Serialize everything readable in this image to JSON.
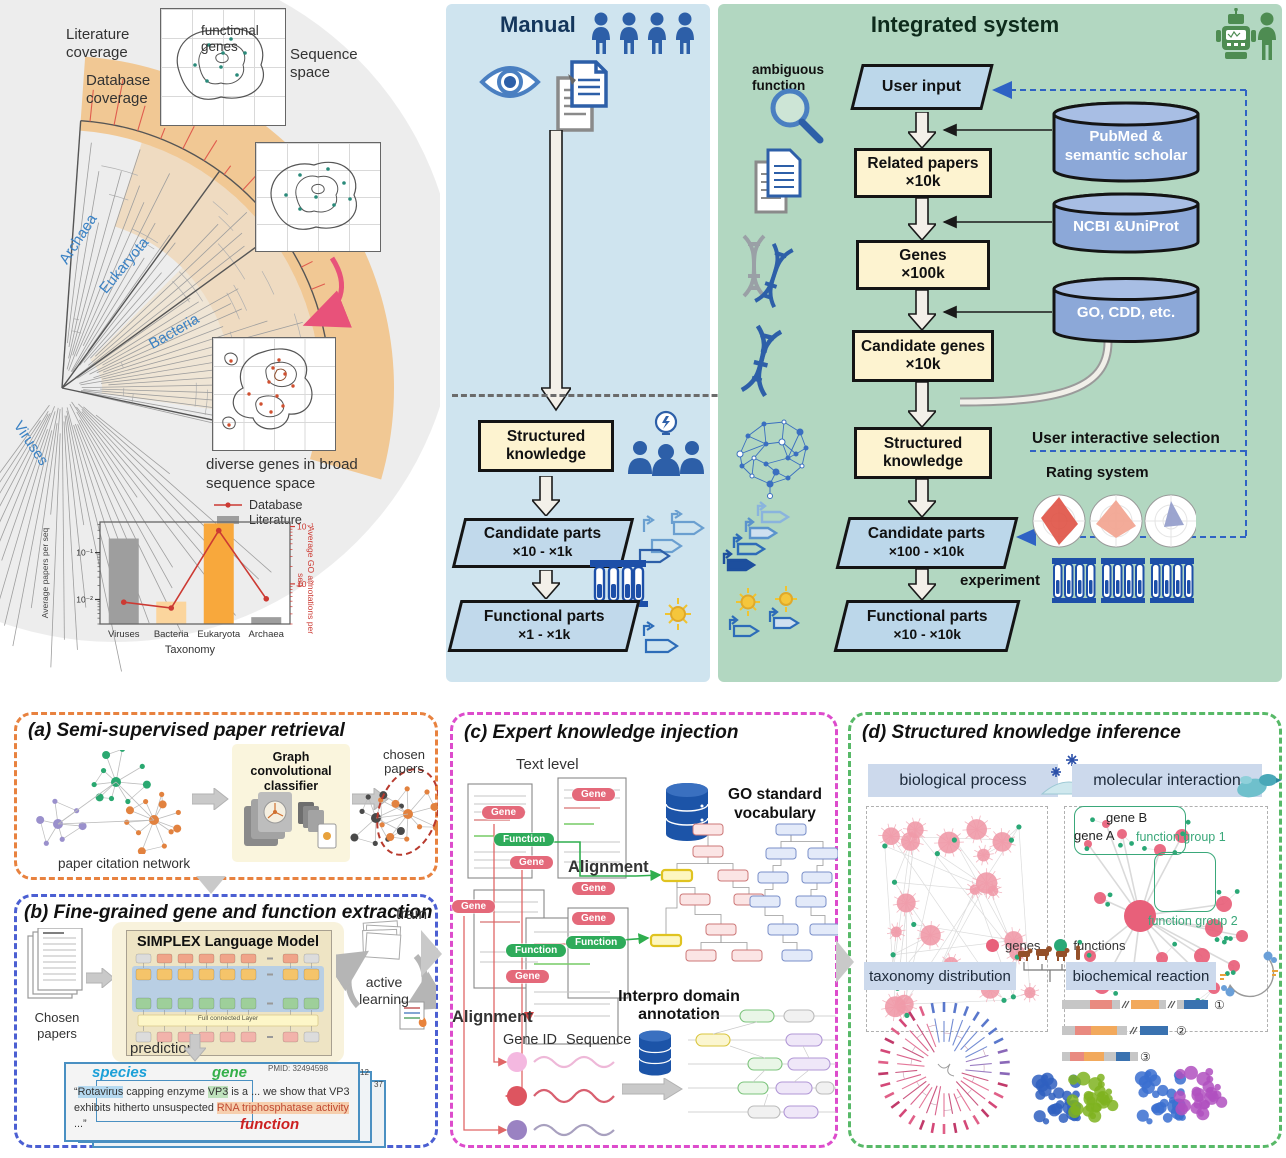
{
  "tree_figure": {
    "literature_coverage": "Literature coverage",
    "database_coverage": "Database coverage",
    "archaea": "Archaea",
    "eukaryota": "Eukaryota",
    "bacteria": "Bacteria",
    "viruses": "Viruses",
    "functional_genes": "functional genes",
    "sequence_space": "Sequence space",
    "caption": "diverse genes in broad sequence space"
  },
  "chart_data": {
    "type": "bar+line",
    "categories": [
      "Viruses",
      "Bacteria",
      "Eukaryota",
      "Archaea"
    ],
    "series": [
      {
        "name": "Literature",
        "type": "bar",
        "axis": "left",
        "values": [
          0.2,
          0.009,
          0.42,
          0.0042
        ],
        "colors": [
          "#9e9e9e",
          "#fbd59d",
          "#f8a83c",
          "#9e9e9e"
        ]
      },
      {
        "name": "Database",
        "type": "line",
        "axis": "right",
        "values": [
          0.0048,
          0.0038,
          0.085,
          0.0055
        ],
        "color": "#cc3a33"
      }
    ],
    "title": "",
    "xlabel": "Taxonomy",
    "ylabel_left": "Average papers per seq",
    "ylabel_right": "Average GO annotations per seq",
    "yscale": "log",
    "ylim_left": [
      0.003,
      0.45
    ],
    "ylim_right": [
      0.002,
      0.12
    ],
    "ytick_values": [
      0.1,
      0.01
    ],
    "yticks_left": [
      "10⁻¹",
      "10⁻²"
    ],
    "yticks_right": [
      "10⁻¹",
      "10⁻²"
    ],
    "legend_position": "top-right",
    "grid": false
  },
  "manual": {
    "title": "Manual",
    "structured_knowledge": "Structured knowledge",
    "candidate_parts": "Candidate parts",
    "candidate_count": "×10 - ×1k",
    "functional_parts": "Functional parts",
    "functional_count": "×1 - ×1k"
  },
  "integrated": {
    "title": "Integrated system",
    "ambiguous_function": "ambiguous function",
    "user_input": "User input",
    "db_pubmed": "PubMed & semantic scholar",
    "related_papers": "Related papers",
    "related_count": "×10k",
    "db_ncbi": "NCBI &UniProt",
    "genes": "Genes",
    "genes_count": "×100k",
    "db_go": "GO, CDD, etc.",
    "candidate_genes": "Candidate genes",
    "candidate_genes_count": "×10k",
    "structured_knowledge": "Structured knowledge",
    "user_interactive_selection": "User interactive selection",
    "rating_system": "Rating system",
    "candidate_parts": "Candidate parts",
    "candidate_parts_count": "×100 - ×10k",
    "experiment": "experiment",
    "functional_parts": "Functional parts",
    "functional_parts_count": "×10 - ×10k"
  },
  "panel_a": {
    "title": "(a) Semi-supervised paper retrieval",
    "classifier": "Graph convolutional classifier",
    "network_label": "paper citation network",
    "chosen_label": "chosen papers"
  },
  "panel_b": {
    "title": "(b) Fine-grained gene and function extraction",
    "chosen_papers": "Chosen papers",
    "model_title": "SIMPLEX Language Model",
    "fc_layer": "Full connected Layer",
    "train": "train",
    "active_learning": "active learning",
    "prediction": "prediction",
    "pmid": "PMID: 32494598",
    "card_edge_1": "12",
    "card_edge_2": "37",
    "species_label": "species",
    "gene_label": "gene",
    "function_label": "function",
    "quote_open": "“",
    "species_text": "Rotavirus",
    "quote_mid1": " capping enzyme ",
    "gene_text": "VP3",
    "quote_mid2": " is a ... we show that VP3 exhibits hitherto unsuspected ",
    "function_text": "RNA triphosphatase activity",
    "quote_close": " ...”"
  },
  "panel_c": {
    "title": "(c) Expert knowledge injection",
    "text_level": "Text level",
    "gene_pill": "Gene",
    "function_pill": "Function",
    "go_vocabulary": "GO standard vocabulary",
    "alignment_go": "Alignment",
    "alignment_seq": "Alignment",
    "gene_id": "Gene ID",
    "sequence": "Sequence",
    "interpro": "Interpro domain annotation"
  },
  "panel_d": {
    "title": "(d) Structured knowledge inference",
    "biological_process": "biological process",
    "molecular_interaction": "molecular interaction",
    "gene_b": "gene B",
    "gene_a": "gene A",
    "function_group_1": "function group 1",
    "function_group_2": "function group 2",
    "legend_genes": "genes",
    "legend_functions": "functions",
    "taxonomy_distribution": "taxonomy distribution",
    "biochemical_reaction": "biochemical reaction",
    "seq_1": "①",
    "seq_2": "②",
    "seq_3": "③"
  },
  "colors": {
    "manual_bg": "#cfe4ef",
    "integrated_bg": "#b2d7c1",
    "flow_yellow": "#fdf3d0",
    "parallelogram_blue": "#c1d9eb",
    "cylinder_blue": "#8ca8d8",
    "panel_a_border": "#e8823f",
    "panel_b_border": "#4b5fd2",
    "panel_c_border": "#dd4ccc",
    "panel_d_border": "#58b968",
    "genes_node": "#e8607a",
    "functions_node": "#2aa876"
  }
}
